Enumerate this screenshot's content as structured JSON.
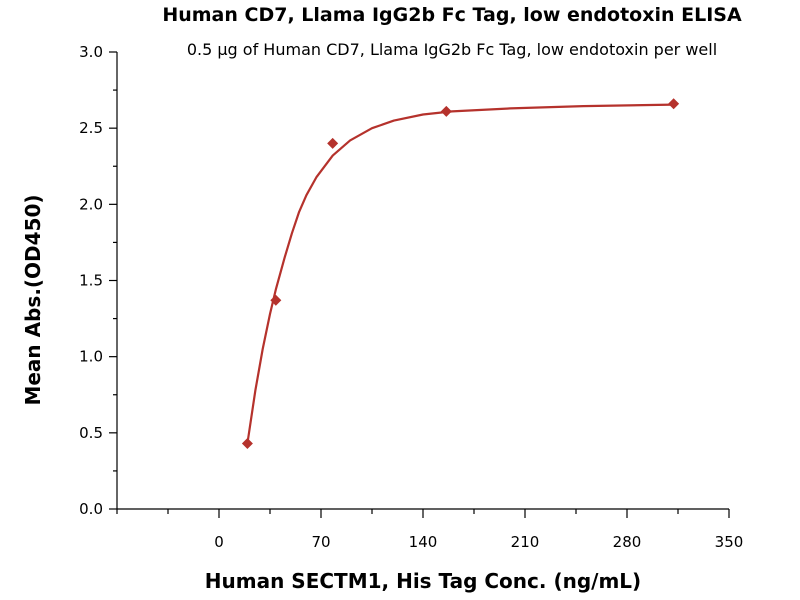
{
  "chart_data": {
    "type": "scatter",
    "title": "Human CD7, Llama IgG2b Fc Tag, low endotoxin ELISA",
    "subtitle": "0.5 μg of Human CD7, Llama IgG2b Fc Tag, low endotoxin per well",
    "xlabel": "Human SECTM1, His Tag Conc. (ng/mL)",
    "ylabel": "Mean Abs.(OD450)",
    "xlim": [
      -70,
      350
    ],
    "ylim": [
      0,
      3.0
    ],
    "x_ticks": [
      "0",
      "70",
      "140",
      "210",
      "280",
      "350"
    ],
    "y_ticks": [
      "0.0",
      "0.5",
      "1.0",
      "1.5",
      "2.0",
      "2.5",
      "3.0"
    ],
    "grid": false,
    "legend": "none",
    "series": [
      {
        "marker": "diamond",
        "color": "#b5322c",
        "points": [
          {
            "x": 19.5,
            "y": 0.43
          },
          {
            "x": 39,
            "y": 1.37
          },
          {
            "x": 78,
            "y": 2.4
          },
          {
            "x": 156,
            "y": 2.61
          },
          {
            "x": 312,
            "y": 2.66
          }
        ]
      }
    ],
    "fit_curve": {
      "color": "#b5322c",
      "points": [
        {
          "x": 19.5,
          "y": 0.43
        },
        {
          "x": 25,
          "y": 0.78
        },
        {
          "x": 30,
          "y": 1.05
        },
        {
          "x": 35,
          "y": 1.28
        },
        {
          "x": 39,
          "y": 1.44
        },
        {
          "x": 45,
          "y": 1.65
        },
        {
          "x": 50,
          "y": 1.81
        },
        {
          "x": 55,
          "y": 1.95
        },
        {
          "x": 60,
          "y": 2.06
        },
        {
          "x": 67,
          "y": 2.18
        },
        {
          "x": 78,
          "y": 2.32
        },
        {
          "x": 90,
          "y": 2.42
        },
        {
          "x": 105,
          "y": 2.5
        },
        {
          "x": 120,
          "y": 2.55
        },
        {
          "x": 140,
          "y": 2.59
        },
        {
          "x": 160,
          "y": 2.61
        },
        {
          "x": 200,
          "y": 2.63
        },
        {
          "x": 250,
          "y": 2.645
        },
        {
          "x": 312,
          "y": 2.655
        }
      ]
    }
  }
}
